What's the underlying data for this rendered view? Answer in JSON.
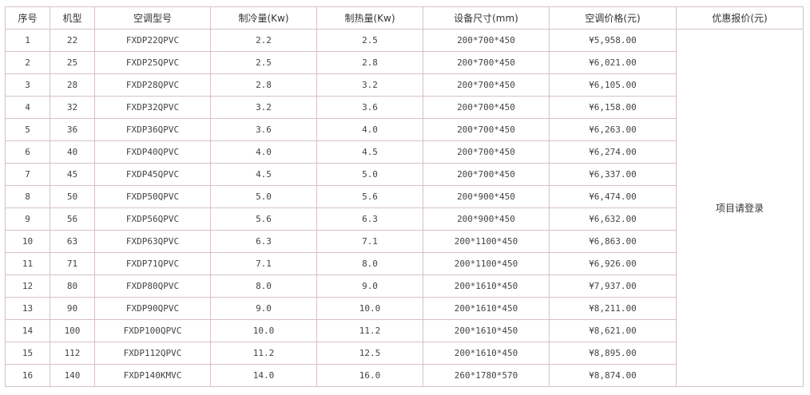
{
  "headers": [
    "序号",
    "机型",
    "空调型号",
    "制冷量(Kw)",
    "制热量(Kw)",
    "设备尺寸(mm)",
    "空调价格(元)",
    "优惠报价(元)"
  ],
  "rows": [
    [
      "1",
      "22",
      "FXDP22QPVC",
      "2.2",
      "2.5",
      "200*700*450",
      "¥5,958.00"
    ],
    [
      "2",
      "25",
      "FXDP25QPVC",
      "2.5",
      "2.8",
      "200*700*450",
      "¥6,021.00"
    ],
    [
      "3",
      "28",
      "FXDP28QPVC",
      "2.8",
      "3.2",
      "200*700*450",
      "¥6,105.00"
    ],
    [
      "4",
      "32",
      "FXDP32QPVC",
      "3.2",
      "3.6",
      "200*700*450",
      "¥6,158.00"
    ],
    [
      "5",
      "36",
      "FXDP36QPVC",
      "3.6",
      "4.0",
      "200*700*450",
      "¥6,263.00"
    ],
    [
      "6",
      "40",
      "FXDP40QPVC",
      "4.0",
      "4.5",
      "200*700*450",
      "¥6,274.00"
    ],
    [
      "7",
      "45",
      "FXDP45QPVC",
      "4.5",
      "5.0",
      "200*700*450",
      "¥6,337.00"
    ],
    [
      "8",
      "50",
      "FXDP50QPVC",
      "5.0",
      "5.6",
      "200*900*450",
      "¥6,474.00"
    ],
    [
      "9",
      "56",
      "FXDP56QPVC",
      "5.6",
      "6.3",
      "200*900*450",
      "¥6,632.00"
    ],
    [
      "10",
      "63",
      "FXDP63QPVC",
      "6.3",
      "7.1",
      "200*1100*450",
      "¥6,863.00"
    ],
    [
      "11",
      "71",
      "FXDP71QPVC",
      "7.1",
      "8.0",
      "200*1100*450",
      "¥6,926.00"
    ],
    [
      "12",
      "80",
      "FXDP80QPVC",
      "8.0",
      "9.0",
      "200*1610*450",
      "¥7,937.00"
    ],
    [
      "13",
      "90",
      "FXDP90QPVC",
      "9.0",
      "10.0",
      "200*1610*450",
      "¥8,211.00"
    ],
    [
      "14",
      "100",
      "FXDP100QPVC",
      "10.0",
      "11.2",
      "200*1610*450",
      "¥8,621.00"
    ],
    [
      "15",
      "112",
      "FXDP112QPVC",
      "11.2",
      "12.5",
      "200*1610*450",
      "¥8,895.00"
    ],
    [
      "16",
      "140",
      "FXDP140KMVC",
      "14.0",
      "16.0",
      "260*1780*570",
      "¥8,874.00"
    ]
  ],
  "promo_text": "项目请登录"
}
